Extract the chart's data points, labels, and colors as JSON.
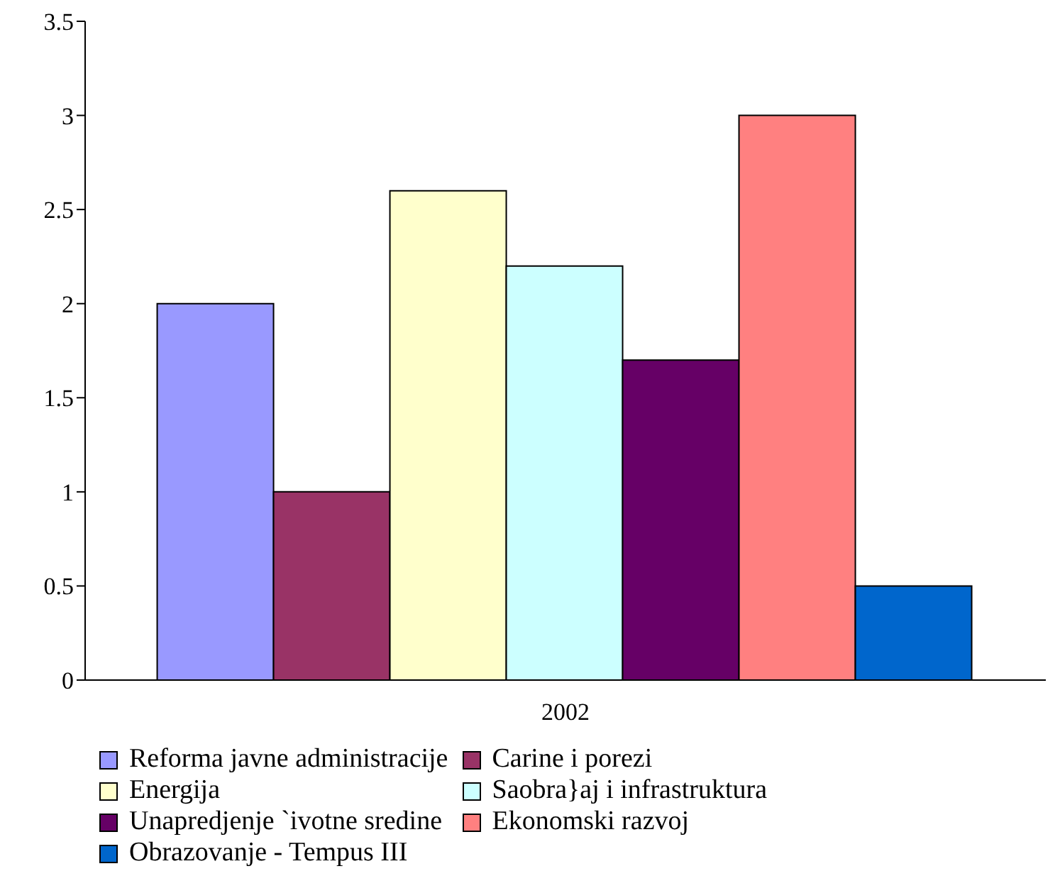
{
  "chart_data": {
    "type": "bar",
    "categories": [
      "2002"
    ],
    "series": [
      {
        "name": "Reforma javne administracije",
        "color": "#9999ff",
        "values": [
          2
        ]
      },
      {
        "name": "Carine i porezi",
        "color": "#993366",
        "values": [
          1
        ]
      },
      {
        "name": "Energija",
        "color": "#ffffcc",
        "values": [
          2.6
        ]
      },
      {
        "name": "Saobra}aj i infrastruktura",
        "color": "#ccffff",
        "values": [
          2.2
        ]
      },
      {
        "name": "Unapredjenje `ivotne sredine",
        "color": "#660066",
        "values": [
          1.7
        ]
      },
      {
        "name": "Ekonomski razvoj",
        "color": "#ff8080",
        "values": [
          3
        ]
      },
      {
        "name": "Obrazovanje - Tempus III",
        "color": "#0066cc",
        "values": [
          0.5
        ]
      }
    ],
    "ylim": [
      0,
      3.5
    ],
    "yticks": [
      0,
      0.5,
      1,
      1.5,
      2,
      2.5,
      3,
      3.5
    ],
    "grid": false,
    "legend": "bottom"
  }
}
